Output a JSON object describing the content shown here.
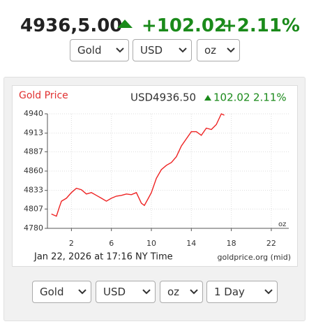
{
  "header": {
    "price": "4936,5.00",
    "change": "+102.02",
    "change_pct": "+2.11%"
  },
  "top_selects": [
    "Gold",
    "USD",
    "oz"
  ],
  "bottom_selects": [
    "Gold",
    "USD",
    "oz",
    "1 Day"
  ],
  "chart_data": {
    "type": "line",
    "title": "Gold Price",
    "price_label": "USD4936.50",
    "change_label": "102.02",
    "change_pct_label": "2.11%",
    "unit_label": "oz",
    "footer_date": "Jan 22, 2026 at 17:16 NY Time",
    "footer_source": "goldprice.org (mid)",
    "x": [
      0,
      0.5,
      0.8,
      1,
      1.5,
      2,
      2.5,
      3,
      3.5,
      4,
      4.5,
      5,
      5.5,
      6,
      6.5,
      7,
      7.5,
      8,
      8.5,
      9,
      9.3,
      9.7,
      10,
      10.5,
      11,
      11.5,
      12,
      12.5,
      13,
      13.5,
      14,
      14.5,
      15,
      15.5,
      16,
      16.5,
      17,
      17.3
    ],
    "series": [
      {
        "color": "#ee2222",
        "values": [
          4800,
          4797,
          4810,
          4818,
          4822,
          4830,
          4836,
          4834,
          4828,
          4830,
          4826,
          4822,
          4818,
          4822,
          4825,
          4826,
          4828,
          4827,
          4830,
          4815,
          4812,
          4822,
          4830,
          4850,
          4862,
          4868,
          4872,
          4880,
          4895,
          4905,
          4915,
          4915,
          4910,
          4920,
          4918,
          4925,
          4940,
          4938
        ]
      }
    ],
    "xlim": [
      -0.4,
      23.75
    ],
    "xticks": [
      2,
      6,
      10,
      14,
      18,
      22
    ],
    "ylim": [
      4780,
      4940
    ],
    "yticks": [
      4780,
      4807,
      4833,
      4860,
      4887,
      4913,
      4940
    ],
    "grid": true
  }
}
